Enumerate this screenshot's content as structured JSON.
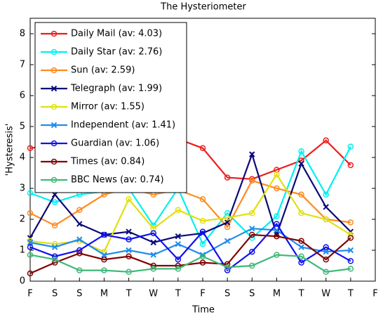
{
  "chart_data": {
    "type": "line",
    "title": "The Hysteriometer",
    "x_label": "Time",
    "y_label": "'Hysteresis'",
    "categories": [
      "F",
      "S",
      "S",
      "M",
      "T",
      "W",
      "T",
      "F",
      "S",
      "S",
      "M",
      "T",
      "W",
      "T",
      "F"
    ],
    "ylim": [
      0,
      8.5
    ],
    "yticks": [
      0,
      1,
      2,
      3,
      4,
      5,
      6,
      7,
      8
    ],
    "grid": false,
    "legend": "upper left",
    "series": [
      {
        "name": "Daily Mail (av: 4.03)",
        "color": "#ee1c1c",
        "marker": "circle",
        "values": [
          4.3,
          4.4,
          4.5,
          4.4,
          4.3,
          4.4,
          4.6,
          4.3,
          3.35,
          3.3,
          3.6,
          3.9,
          4.55,
          3.75,
          null
        ]
      },
      {
        "name": "Daily Star (av: 2.76)",
        "color": "#00f0f0",
        "marker": "circle",
        "values": [
          2.85,
          2.55,
          2.8,
          2.9,
          3.0,
          1.8,
          3.0,
          1.2,
          2.2,
          1.4,
          2.1,
          4.2,
          2.8,
          4.35,
          null
        ]
      },
      {
        "name": "Sun (av: 2.59)",
        "color": "#ff8a1f",
        "marker": "circle",
        "values": [
          2.2,
          1.8,
          2.3,
          2.8,
          3.0,
          2.8,
          2.95,
          2.65,
          1.75,
          3.25,
          3.0,
          2.8,
          2.0,
          1.9,
          null
        ]
      },
      {
        "name": "Telegraph (av: 1.99)",
        "color": "#0a0a78",
        "marker": "x",
        "values": [
          1.4,
          2.8,
          1.85,
          1.5,
          1.6,
          1.25,
          1.45,
          1.55,
          1.9,
          4.1,
          1.5,
          3.8,
          2.4,
          1.6,
          null
        ]
      },
      {
        "name": "Mirror (av: 1.55)",
        "color": "#e0e010",
        "marker": "circle",
        "values": [
          1.3,
          1.2,
          1.3,
          0.95,
          2.65,
          1.7,
          2.3,
          1.95,
          2.05,
          2.2,
          3.45,
          2.2,
          2.0,
          1.5,
          null
        ]
      },
      {
        "name": "Independent (av: 1.41)",
        "color": "#1e8cf0",
        "marker": "x",
        "values": [
          1.25,
          1.1,
          1.35,
          0.85,
          1.0,
          0.85,
          1.2,
          0.85,
          1.3,
          1.7,
          1.65,
          1.1,
          0.95,
          1.0,
          null
        ]
      },
      {
        "name": "Guardian (av: 1.06)",
        "color": "#1010f0",
        "marker": "circle",
        "values": [
          1.1,
          0.8,
          1.0,
          1.5,
          1.35,
          1.55,
          0.7,
          1.6,
          0.35,
          0.95,
          1.85,
          0.6,
          1.1,
          0.65,
          null
        ]
      },
      {
        "name": "Times (av: 0.84)",
        "color": "#800000",
        "marker": "circle",
        "values": [
          0.25,
          0.6,
          0.9,
          0.7,
          0.8,
          0.5,
          0.5,
          0.6,
          0.55,
          1.5,
          1.45,
          1.3,
          0.7,
          1.4,
          null
        ]
      },
      {
        "name": "BBC News (av: 0.74)",
        "color": "#40b878",
        "marker": "circle",
        "values": [
          0.85,
          0.7,
          0.35,
          0.35,
          0.3,
          0.4,
          0.4,
          0.8,
          0.45,
          0.5,
          0.85,
          0.8,
          0.3,
          0.4,
          null
        ]
      }
    ]
  }
}
